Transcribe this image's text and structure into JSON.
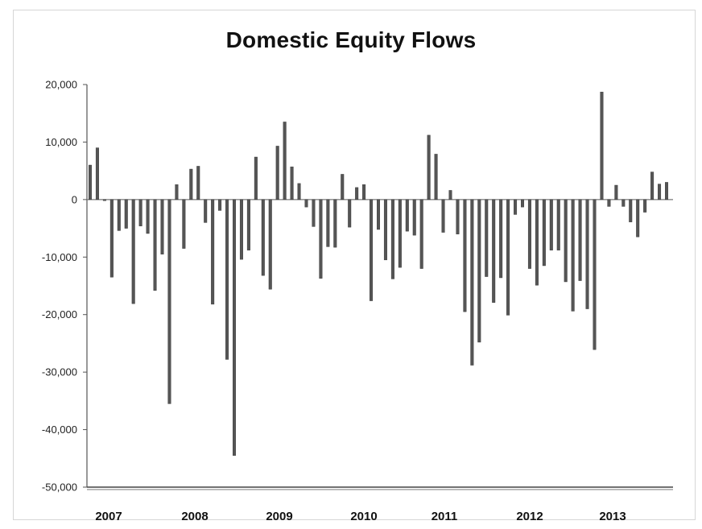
{
  "chart_data": {
    "type": "bar",
    "title": "Domestic Equity Flows",
    "xlabel": "",
    "ylabel": "",
    "ylim": [
      -50000,
      20000
    ],
    "yticks": [
      20000,
      10000,
      0,
      -10000,
      -20000,
      -30000,
      -40000,
      -50000
    ],
    "ytick_labels": [
      "20,000",
      "10,000",
      "0",
      "-10,000",
      "-20,000",
      "-30,000",
      "-40,000",
      "-50,000"
    ],
    "year_labels": [
      "2007",
      "2008",
      "2009",
      "2010",
      "2011",
      "2012",
      "2013"
    ],
    "grid": false,
    "bar_color": "#555555",
    "periods": [
      {
        "year": "2007",
        "values": [
          6000,
          9000,
          -200,
          -13500,
          -5400,
          -5000,
          -18100,
          -4600,
          -5900,
          -15800,
          -9500,
          -35500
        ]
      },
      {
        "year": "2008",
        "values": [
          2600,
          -8500,
          5300,
          5800,
          -4000,
          -18200,
          -1900,
          -27800,
          -44500,
          -10400,
          -8800,
          7400
        ]
      },
      {
        "year": "2009",
        "values": [
          -13200,
          -15600,
          9300,
          13500,
          5700,
          2800,
          -1300,
          -4700,
          -13700,
          -8200,
          -8300,
          4400
        ]
      },
      {
        "year": "2010",
        "values": [
          -4800,
          2100,
          2600,
          -17600,
          -5200,
          -10500,
          -13800,
          -11800,
          -5500,
          -6200,
          -12000,
          11200
        ]
      },
      {
        "year": "2011",
        "values": [
          7900,
          -5700,
          1600,
          -6000,
          -19500,
          -28800,
          -24800,
          -13400,
          -17900,
          -13600,
          -20100,
          -2600
        ]
      },
      {
        "year": "2012",
        "values": [
          -1300,
          -12000,
          -14900,
          -11500,
          -8800,
          -8800,
          -14300,
          -19400,
          -14100,
          -19000,
          -26100,
          18700
        ]
      },
      {
        "year": "2013",
        "values": [
          -1200,
          2500,
          -1200,
          -3900,
          -6500,
          -2200,
          4800,
          2700,
          3000
        ]
      }
    ]
  }
}
